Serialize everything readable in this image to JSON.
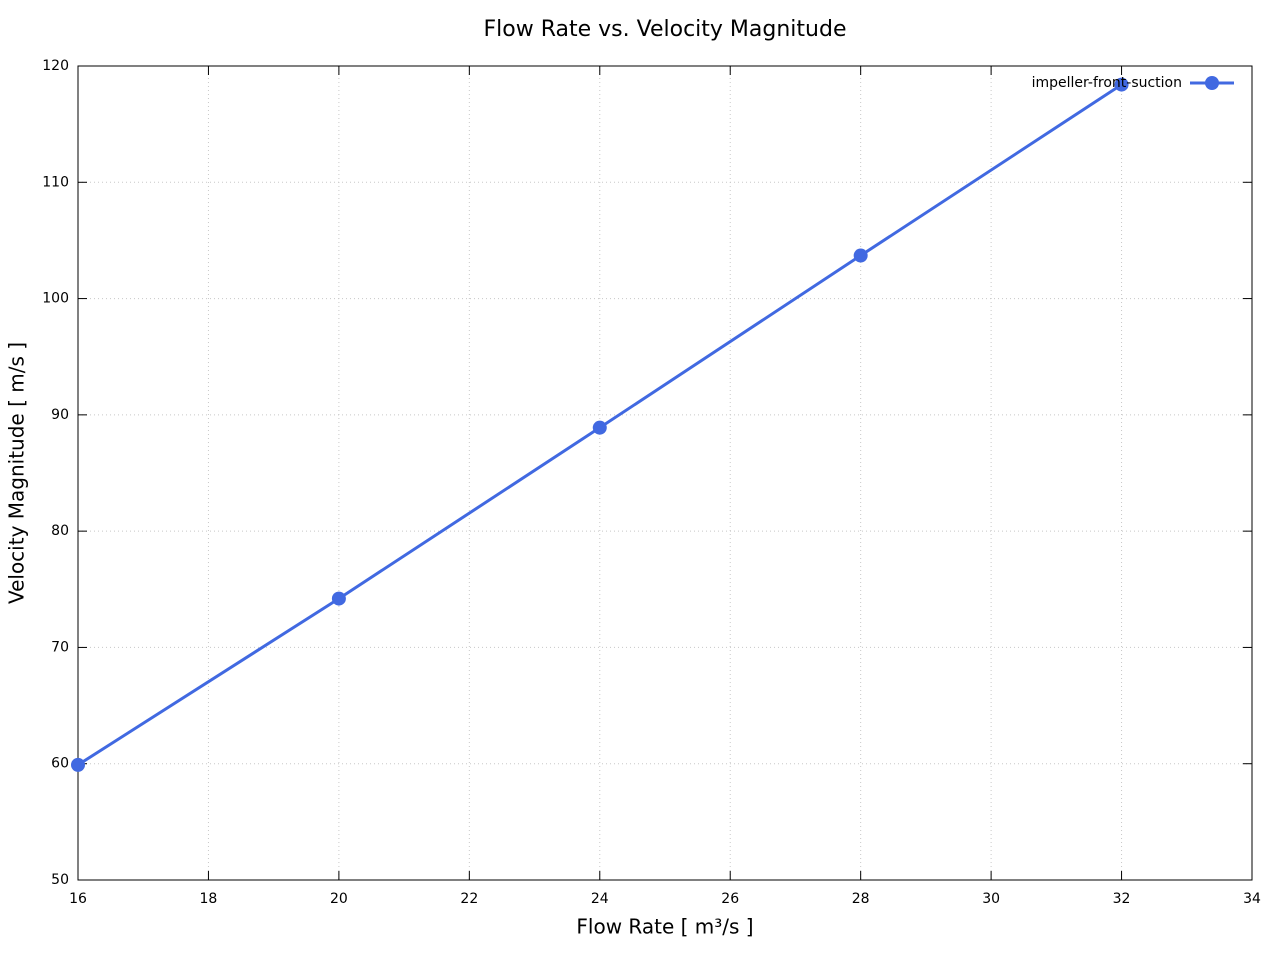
{
  "chart_data": {
    "type": "line",
    "title": "Flow Rate vs. Velocity Magnitude",
    "x_label": "Flow Rate [ m³/s ]",
    "y_label": "Velocity Magnitude [ m/s ]",
    "x": [
      16,
      20,
      24,
      28,
      32
    ],
    "series": [
      {
        "name": "impeller-front-suction",
        "color": "#4169e1",
        "values": [
          59.9,
          74.2,
          88.9,
          103.7,
          118.4
        ]
      }
    ],
    "xlim": [
      16,
      34
    ],
    "xticks": [
      16,
      18,
      20,
      22,
      24,
      26,
      28,
      30,
      32,
      34
    ],
    "ylim": [
      50,
      120
    ],
    "yticks": [
      50,
      60,
      70,
      80,
      90,
      100,
      110,
      120
    ],
    "grid": true,
    "legend": "top-right"
  }
}
